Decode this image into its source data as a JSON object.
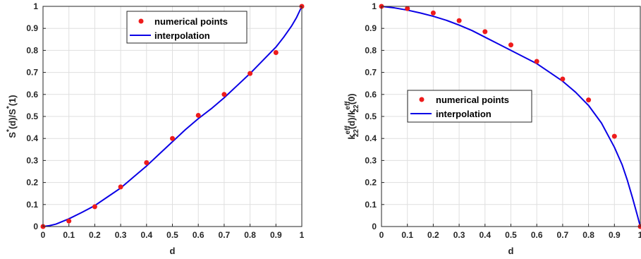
{
  "chart_data": [
    {
      "type": "scatter",
      "xlabel": "d",
      "ylabel": {
        "base": "S",
        "sup1": "*",
        "mid": "(d)/S",
        "sup2": "*",
        "end": "(1)"
      },
      "xlim": [
        0,
        1
      ],
      "ylim": [
        0,
        1
      ],
      "x_ticks": [
        "0",
        "0.1",
        "0.2",
        "0.3",
        "0.4",
        "0.5",
        "0.6",
        "0.7",
        "0.8",
        "0.9",
        "1"
      ],
      "y_ticks": [
        "0",
        "0.1",
        "0.2",
        "0.3",
        "0.4",
        "0.5",
        "0.6",
        "0.7",
        "0.8",
        "0.9",
        "1"
      ],
      "grid": true,
      "legend_position": "top-center",
      "series": [
        {
          "name": "numerical points",
          "style": "markers",
          "color": "#ee1c1c",
          "x": [
            0,
            0.1,
            0.2,
            0.3,
            0.4,
            0.5,
            0.6,
            0.7,
            0.8,
            0.9,
            1
          ],
          "y": [
            0,
            0.025,
            0.09,
            0.18,
            0.29,
            0.4,
            0.505,
            0.6,
            0.695,
            0.79,
            1
          ]
        },
        {
          "name": "interpolation",
          "style": "line",
          "color": "#0a00e6",
          "x": [
            0,
            0.025,
            0.05,
            0.1,
            0.15,
            0.2,
            0.25,
            0.3,
            0.35,
            0.4,
            0.45,
            0.5,
            0.55,
            0.6,
            0.65,
            0.7,
            0.75,
            0.8,
            0.85,
            0.9,
            0.93,
            0.96,
            0.98,
            1
          ],
          "y": [
            0,
            0.004,
            0.011,
            0.035,
            0.064,
            0.095,
            0.135,
            0.175,
            0.225,
            0.275,
            0.33,
            0.385,
            0.44,
            0.49,
            0.535,
            0.585,
            0.64,
            0.695,
            0.755,
            0.815,
            0.86,
            0.91,
            0.95,
            1.0
          ]
        }
      ]
    },
    {
      "type": "scatter",
      "xlabel": "d",
      "ylabel": {
        "k1": "k",
        "sup1": "eff",
        "sub1": "22",
        "mid": "(d)/k",
        "sup2": "eff",
        "sub2": "22",
        "end": "(0)"
      },
      "xlim": [
        0,
        1
      ],
      "ylim": [
        0,
        1
      ],
      "x_ticks": [
        "0",
        "0.1",
        "0.2",
        "0.3",
        "0.4",
        "0.5",
        "0.6",
        "0.7",
        "0.8",
        "0.9",
        "1"
      ],
      "y_ticks": [
        "0",
        "0.1",
        "0.2",
        "0.3",
        "0.4",
        "0.5",
        "0.6",
        "0.7",
        "0.8",
        "0.9",
        "1"
      ],
      "grid": true,
      "legend_position": "middle-left",
      "series": [
        {
          "name": "numerical points",
          "style": "markers",
          "color": "#ee1c1c",
          "x": [
            0,
            0.1,
            0.2,
            0.3,
            0.4,
            0.5,
            0.6,
            0.7,
            0.8,
            0.9,
            1
          ],
          "y": [
            1,
            0.99,
            0.97,
            0.935,
            0.885,
            0.825,
            0.75,
            0.67,
            0.575,
            0.41,
            0
          ]
        },
        {
          "name": "interpolation",
          "style": "line",
          "color": "#0a00e6",
          "x": [
            0,
            0.05,
            0.1,
            0.15,
            0.2,
            0.25,
            0.3,
            0.35,
            0.4,
            0.45,
            0.5,
            0.55,
            0.6,
            0.65,
            0.7,
            0.75,
            0.8,
            0.85,
            0.9,
            0.93,
            0.95,
            0.97,
            0.99,
            1
          ],
          "y": [
            1.0,
            0.993,
            0.983,
            0.97,
            0.955,
            0.937,
            0.915,
            0.89,
            0.86,
            0.83,
            0.8,
            0.77,
            0.74,
            0.7,
            0.66,
            0.61,
            0.55,
            0.47,
            0.36,
            0.28,
            0.21,
            0.13,
            0.045,
            0
          ]
        }
      ]
    }
  ]
}
